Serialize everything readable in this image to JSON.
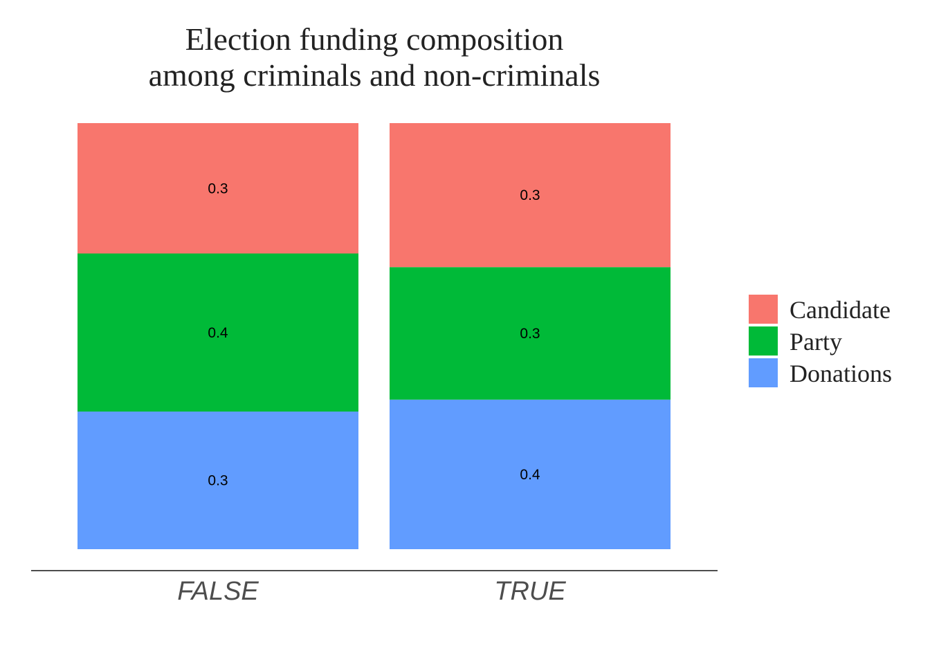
{
  "chart_data": {
    "type": "bar",
    "stacked": true,
    "normalized": true,
    "title": [
      "Election funding composition",
      "among criminals and non-criminals"
    ],
    "xlabel": "",
    "ylabel": "",
    "ylim": [
      0,
      1
    ],
    "categories": [
      "FALSE",
      "TRUE"
    ],
    "series": [
      {
        "name": "Candidate",
        "color": "#F8766D",
        "values": [
          0.306,
          0.338
        ],
        "labels": [
          "0.3",
          "0.3"
        ]
      },
      {
        "name": "Party",
        "color": "#00BA38",
        "values": [
          0.371,
          0.311
        ],
        "labels": [
          "0.4",
          "0.3"
        ]
      },
      {
        "name": "Donations",
        "color": "#619CFF",
        "values": [
          0.323,
          0.351
        ],
        "labels": [
          "0.3",
          "0.4"
        ]
      }
    ],
    "legend_position": "right",
    "grid": false
  }
}
